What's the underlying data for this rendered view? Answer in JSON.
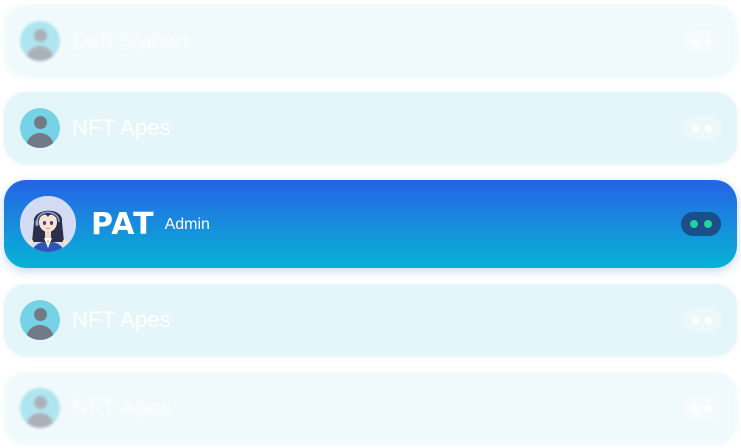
{
  "rows": [
    {
      "label": "Defi Station",
      "state": "faded"
    },
    {
      "label": "NFT Apes",
      "state": "faded"
    },
    {
      "label": "PAT",
      "role": "Admin",
      "state": "active"
    },
    {
      "label": "NFT Apes",
      "state": "faded"
    },
    {
      "label": "NFT Apes",
      "state": "faded"
    }
  ],
  "colors": {
    "active_gradient_top": "#2563e6",
    "active_gradient_bottom": "#06b3d6",
    "faded_row_bg": "#e4f6fb",
    "status_dot_active": "#22d39a"
  },
  "icons": {
    "generic_avatar": "user-avatar-icon",
    "more_menu": "more-dots-icon"
  }
}
